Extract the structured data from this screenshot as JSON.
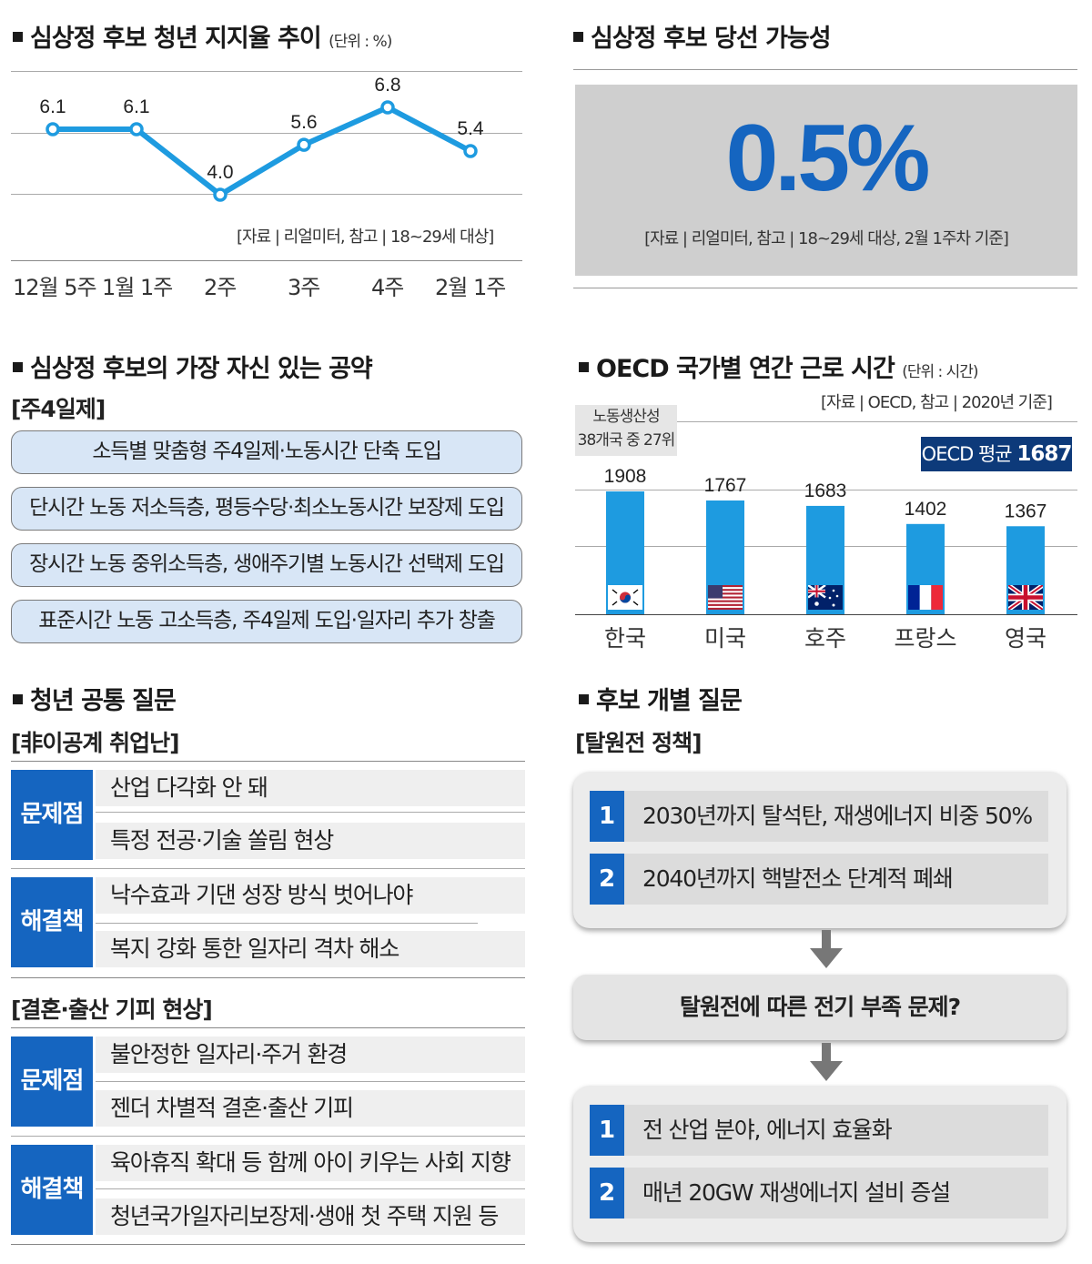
{
  "support_trend": {
    "title": "심상정 후보 청년 지지율 추이",
    "unit": "(단위 : %)",
    "source": "[자료 | 리얼미터, 참고 | 18~29세 대상]"
  },
  "chart_data": [
    {
      "type": "line",
      "title": "심상정 후보 청년 지지율 추이",
      "categories": [
        "12월 5주",
        "1월 1주",
        "2주",
        "3주",
        "4주",
        "2월 1주"
      ],
      "values": [
        6.1,
        6.1,
        4.0,
        5.6,
        6.8,
        5.4
      ],
      "value_labels": [
        "6.1",
        "6.1",
        "4.0",
        "5.6",
        "6.8",
        "5.4"
      ],
      "color": "#1e9be0"
    },
    {
      "type": "bar",
      "title": "OECD 국가별 연간 근로 시간",
      "categories": [
        "한국",
        "미국",
        "호주",
        "프랑스",
        "영국"
      ],
      "values": [
        1908,
        1767,
        1683,
        1402,
        1367
      ],
      "value_labels": [
        "1908",
        "1767",
        "1683",
        "1402",
        "1367"
      ],
      "color": "#1e9be0",
      "flags": [
        "korea-flag-icon",
        "usa-flag-icon",
        "australia-flag-icon",
        "france-flag-icon",
        "uk-flag-icon"
      ]
    }
  ],
  "win_chance": {
    "title": "심상정 후보 당선 가능성",
    "value": "0.5%",
    "source": "[자료 | 리얼미터, 참고 | 18~29세 대상, 2월 1주차 기준]"
  },
  "pledges": {
    "title": "심상정 후보의 가장 자신 있는 공약",
    "subtitle": "[주4일제]",
    "items": [
      "소득별 맞춤형 주4일제·노동시간 단축 도입",
      "단시간 노동 저소득층, 평등수당·최소노동시간 보장제 도입",
      "장시간 노동 중위소득층, 생애주기별 노동시간 선택제 도입",
      "표준시간 노동 고소득층, 주4일제 도입·일자리 추가 창출"
    ]
  },
  "oecd": {
    "title": "OECD 국가별 연간 근로 시간",
    "unit": "(단위 : 시간)",
    "source": "[자료 | OECD, 참고 | 2020년 기준]",
    "productivity_line1": "노동생산성",
    "productivity_line2": "38개국 중 27위",
    "avg_label": "OECD 평균",
    "avg_value": "1687"
  },
  "youth_q": {
    "title": "청년 공통 질문",
    "groups": [
      {
        "subtitle": "[非이공계 취업난]",
        "problem_label": "문제점",
        "problems": [
          "산업 다각화 안 돼",
          "특정 전공·기술 쏠림 현상"
        ],
        "solution_label": "해결책",
        "solutions": [
          "낙수효과 기댄 성장 방식 벗어나야",
          "복지 강화 통한 일자리 격차 해소"
        ]
      },
      {
        "subtitle": "[결혼·출산 기피 현상]",
        "problem_label": "문제점",
        "problems": [
          "불안정한 일자리·주거 환경",
          "젠더 차별적 결혼·출산 기피"
        ],
        "solution_label": "해결책",
        "solutions": [
          "육아휴직 확대 등 함께 아이 키우는 사회 지향",
          "청년국가일자리보장제·생애 첫 주택 지원 등"
        ]
      }
    ]
  },
  "candidate_q": {
    "title": "후보 개별 질문",
    "subtitle": "[탈원전 정책]",
    "policy": [
      {
        "num": "1",
        "text": "2030년까지 탈석탄, 재생에너지 비중 50%"
      },
      {
        "num": "2",
        "text": "2040년까지 핵발전소 단계적 폐쇄"
      }
    ],
    "question": "탈원전에 따른 전기 부족 문제?",
    "answer": [
      {
        "num": "1",
        "text": "전 산업 분야, 에너지 효율화"
      },
      {
        "num": "2",
        "text": "매년 20GW 재생에너지 설비 증설"
      }
    ]
  }
}
